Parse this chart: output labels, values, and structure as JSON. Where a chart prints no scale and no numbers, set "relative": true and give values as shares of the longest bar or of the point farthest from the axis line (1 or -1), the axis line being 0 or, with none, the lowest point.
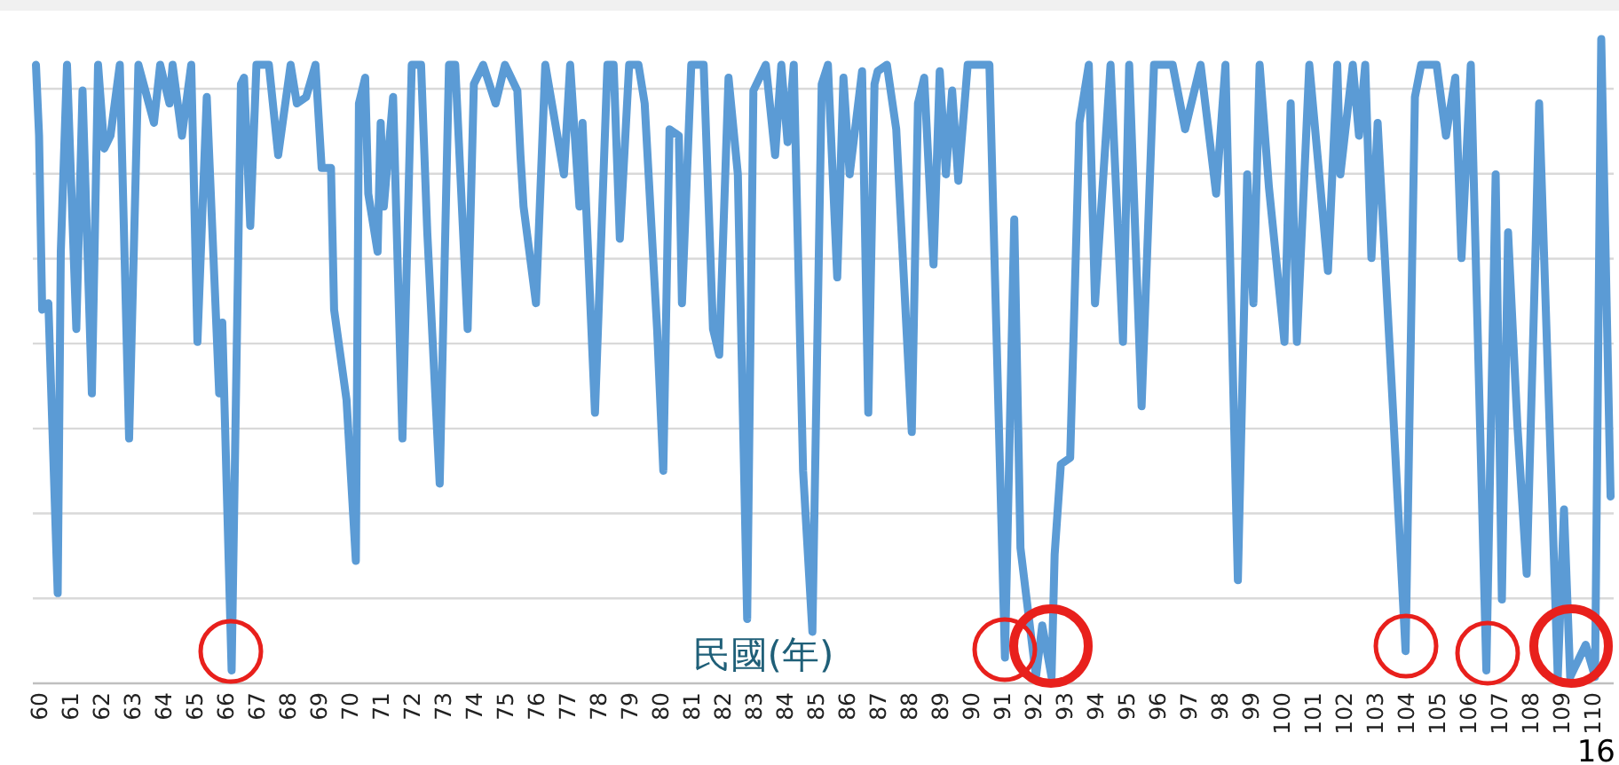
{
  "chart_data": {
    "type": "line",
    "xlabel": "民國(年)",
    "relative": true,
    "grid": "y",
    "xlim": [
      59.8,
      110.7
    ],
    "xticks": [
      60,
      61,
      62,
      63,
      64,
      65,
      66,
      67,
      68,
      69,
      70,
      71,
      72,
      73,
      74,
      75,
      76,
      77,
      78,
      79,
      80,
      81,
      82,
      83,
      84,
      85,
      86,
      87,
      88,
      89,
      90,
      91,
      92,
      93,
      94,
      95,
      96,
      97,
      98,
      99,
      100,
      101,
      102,
      103,
      104,
      105,
      106,
      107,
      108,
      109,
      110
    ],
    "x": [
      59.9,
      60.0,
      60.1,
      60.3,
      60.6,
      60.7,
      60.9,
      61.2,
      61.4,
      61.7,
      61.9,
      62.1,
      62.3,
      62.6,
      62.9,
      63.2,
      63.7,
      63.9,
      64.2,
      64.3,
      64.6,
      64.9,
      65.1,
      65.4,
      65.8,
      65.9,
      66.2,
      66.5,
      66.6,
      66.8,
      67.0,
      67.4,
      67.7,
      68.1,
      68.3,
      68.6,
      68.9,
      69.1,
      69.4,
      69.5,
      69.9,
      70.2,
      70.3,
      70.5,
      70.6,
      70.9,
      71.0,
      71.1,
      71.4,
      71.7,
      72.0,
      72.3,
      72.5,
      72.9,
      73.2,
      73.4,
      73.8,
      74.0,
      74.3,
      74.7,
      75.0,
      75.4,
      75.5,
      75.6,
      76.0,
      76.3,
      76.9,
      77.1,
      77.4,
      77.5,
      77.9,
      78.3,
      78.5,
      78.7,
      79.0,
      79.3,
      79.5,
      79.9,
      80.1,
      80.3,
      80.6,
      80.7,
      81.0,
      81.4,
      81.7,
      81.9,
      82.2,
      82.5,
      82.8,
      83.0,
      83.4,
      83.7,
      83.9,
      84.1,
      84.3,
      84.6,
      84.9,
      85.2,
      85.4,
      85.7,
      85.9,
      86.1,
      86.5,
      86.7,
      86.9,
      87.0,
      87.3,
      87.6,
      88.1,
      88.3,
      88.5,
      88.8,
      89.0,
      89.2,
      89.4,
      89.6,
      89.9,
      90.6,
      91.1,
      91.4,
      91.6,
      92.1,
      92.3,
      92.6,
      92.7,
      92.9,
      93.2,
      93.5,
      93.8,
      94.0,
      94.5,
      94.9,
      95.1,
      95.5,
      95.9,
      96.5,
      96.9,
      97.4,
      97.9,
      98.2,
      98.6,
      98.9,
      99.1,
      99.3,
      99.6,
      100.1,
      100.3,
      100.5,
      100.9,
      101.5,
      101.8,
      101.9,
      102.3,
      102.5,
      102.7,
      102.9,
      103.1,
      103.6,
      104.0,
      104.3,
      104.5,
      105.0,
      105.3,
      105.6,
      105.8,
      106.1,
      106.6,
      106.9,
      107.1,
      107.3,
      107.6,
      107.9,
      108.2,
      108.3,
      108.9,
      109.1,
      109.3,
      109.8,
      110.1,
      110.3,
      110.6
    ],
    "series": [
      {
        "color": "#5b9bd5",
        "values": [
          0.96,
          0.85,
          0.58,
          0.59,
          0.14,
          0.67,
          0.96,
          0.55,
          0.92,
          0.45,
          0.96,
          0.83,
          0.85,
          0.96,
          0.38,
          0.96,
          0.87,
          0.96,
          0.9,
          0.96,
          0.85,
          0.96,
          0.53,
          0.91,
          0.45,
          0.56,
          0.02,
          0.93,
          0.94,
          0.71,
          0.96,
          0.96,
          0.82,
          0.96,
          0.9,
          0.91,
          0.96,
          0.8,
          0.8,
          0.58,
          0.44,
          0.19,
          0.9,
          0.94,
          0.76,
          0.67,
          0.87,
          0.74,
          0.91,
          0.38,
          0.96,
          0.96,
          0.7,
          0.31,
          0.96,
          0.96,
          0.55,
          0.93,
          0.96,
          0.9,
          0.96,
          0.92,
          0.82,
          0.74,
          0.59,
          0.96,
          0.79,
          0.96,
          0.74,
          0.87,
          0.42,
          0.96,
          0.96,
          0.69,
          0.96,
          0.96,
          0.9,
          0.55,
          0.33,
          0.86,
          0.85,
          0.59,
          0.96,
          0.96,
          0.55,
          0.51,
          0.94,
          0.79,
          0.1,
          0.92,
          0.96,
          0.82,
          0.96,
          0.84,
          0.96,
          0.33,
          0.08,
          0.93,
          0.96,
          0.63,
          0.94,
          0.79,
          0.95,
          0.42,
          0.93,
          0.95,
          0.96,
          0.86,
          0.39,
          0.9,
          0.94,
          0.65,
          0.95,
          0.79,
          0.92,
          0.78,
          0.96,
          0.96,
          0.04,
          0.72,
          0.21,
          0.01,
          0.09,
          0.01,
          0.2,
          0.34,
          0.35,
          0.87,
          0.96,
          0.59,
          0.96,
          0.53,
          0.96,
          0.43,
          0.96,
          0.96,
          0.86,
          0.96,
          0.76,
          0.96,
          0.16,
          0.79,
          0.59,
          0.96,
          0.77,
          0.53,
          0.9,
          0.53,
          0.96,
          0.64,
          0.96,
          0.79,
          0.96,
          0.85,
          0.96,
          0.66,
          0.87,
          0.42,
          0.05,
          0.91,
          0.96,
          0.96,
          0.85,
          0.94,
          0.66,
          0.96,
          0.02,
          0.79,
          0.13,
          0.7,
          0.4,
          0.17,
          0.7,
          0.9,
          0.01,
          0.27,
          0.01,
          0.06,
          0.01,
          1.0,
          0.29
        ]
      }
    ],
    "annotations": [
      "16"
    ]
  }
}
